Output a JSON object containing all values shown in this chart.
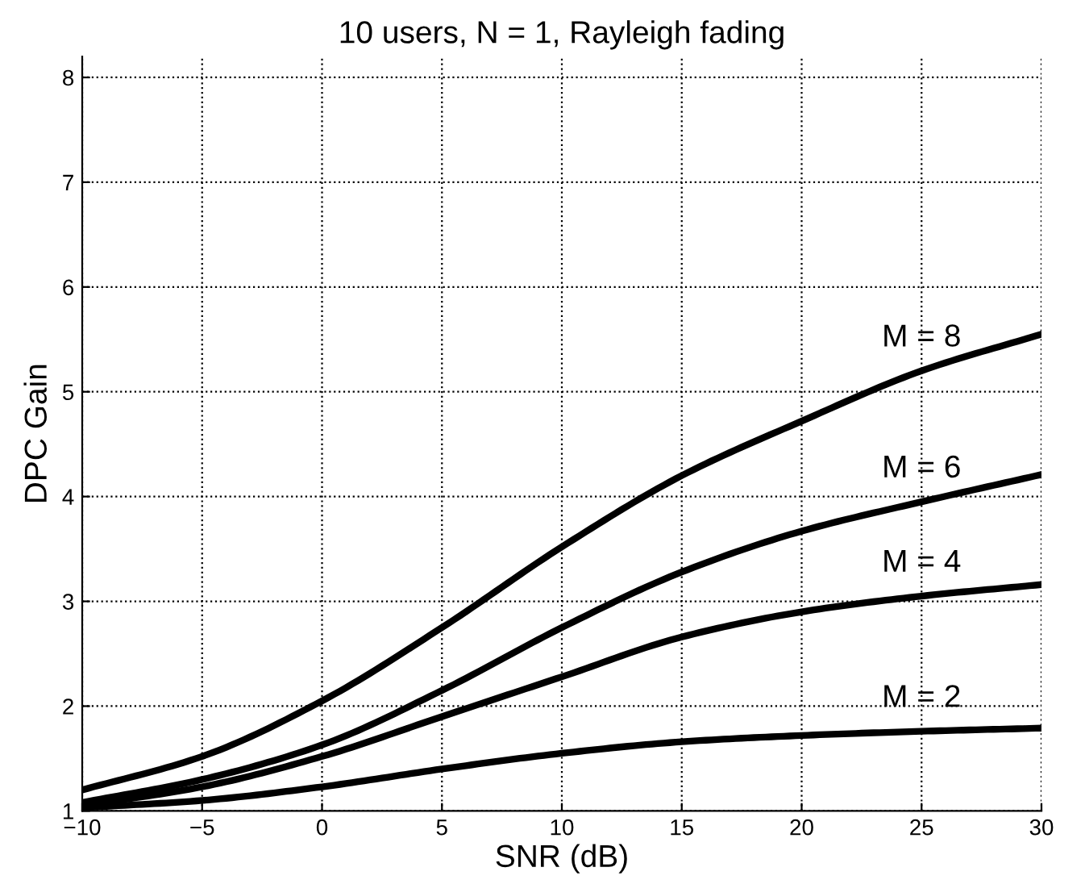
{
  "chart_data": {
    "type": "line",
    "title": "10 users, N = 1, Rayleigh fading",
    "xlabel": "SNR (dB)",
    "ylabel": "DPC Gain",
    "x": [
      -10,
      -5,
      0,
      5,
      10,
      15,
      20,
      25,
      30
    ],
    "series": [
      {
        "name": "M = 8",
        "color": "#000000",
        "values": [
          1.2,
          1.52,
          2.05,
          2.75,
          3.52,
          4.2,
          4.72,
          5.2,
          5.55
        ]
      },
      {
        "name": "M = 6",
        "color": "#000000",
        "values": [
          1.08,
          1.3,
          1.63,
          2.15,
          2.75,
          3.28,
          3.67,
          3.95,
          4.21
        ]
      },
      {
        "name": "M = 4",
        "color": "#000000",
        "values": [
          1.05,
          1.23,
          1.52,
          1.9,
          2.28,
          2.66,
          2.9,
          3.05,
          3.16
        ]
      },
      {
        "name": "M = 2",
        "color": "#000000",
        "values": [
          1.03,
          1.1,
          1.23,
          1.4,
          1.55,
          1.66,
          1.72,
          1.76,
          1.79
        ]
      }
    ],
    "xlim": [
      -10,
      30
    ],
    "ylim": [
      1,
      8.2
    ],
    "xticks": [
      {
        "value": -10,
        "label": "−10"
      },
      {
        "value": -5,
        "label": "−5"
      },
      0,
      5,
      10,
      15,
      20,
      25,
      30
    ],
    "yticks": [
      1,
      2,
      3,
      4,
      5,
      6,
      7,
      8
    ],
    "grid": true,
    "line_style": "solid",
    "marker": "none",
    "legend": false
  }
}
